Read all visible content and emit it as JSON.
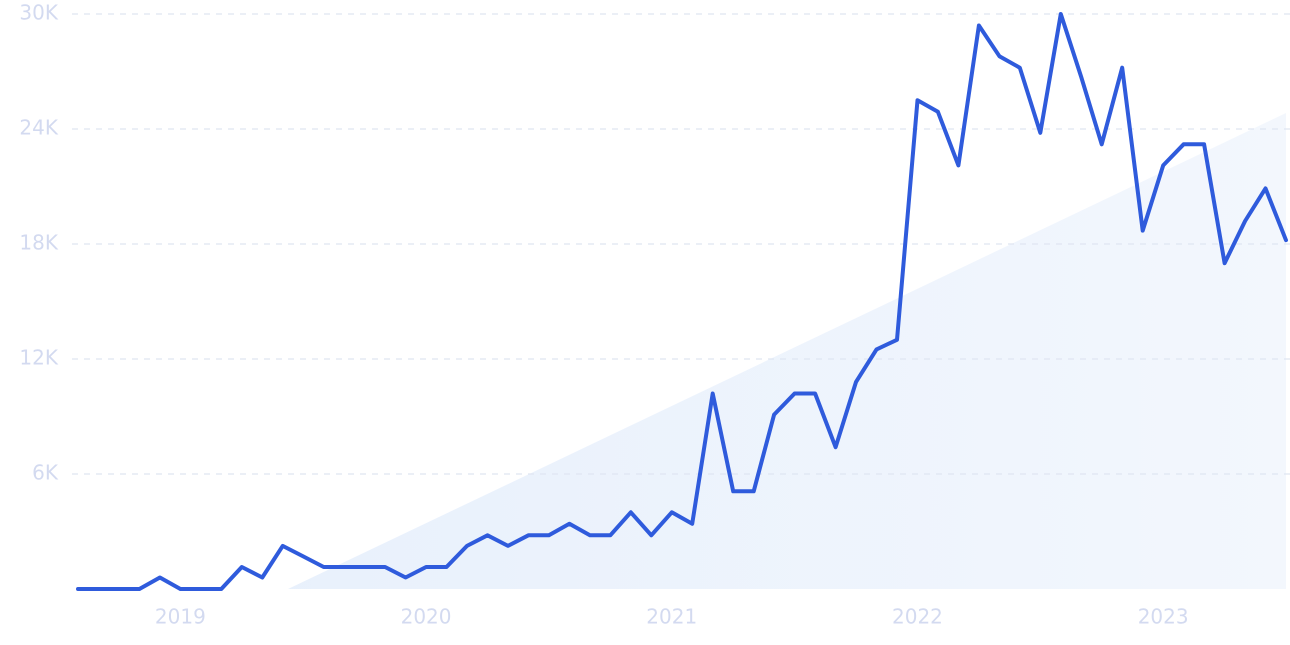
{
  "chart_data": {
    "type": "line",
    "categories": [
      null,
      null,
      null,
      null,
      null,
      "2019",
      null,
      null,
      null,
      null,
      null,
      null,
      null,
      null,
      null,
      null,
      null,
      "2020",
      null,
      null,
      null,
      null,
      null,
      null,
      null,
      null,
      null,
      null,
      null,
      "2021",
      null,
      null,
      null,
      null,
      null,
      null,
      null,
      null,
      null,
      null,
      null,
      "2022",
      null,
      null,
      null,
      null,
      null,
      null,
      null,
      null,
      null,
      null,
      null,
      "2023",
      null,
      null,
      null,
      null,
      null,
      null
    ],
    "series": [
      {
        "color": "#2f5bdc",
        "values": [
          0,
          0,
          0,
          0,
          600,
          0,
          0,
          0,
          1150,
          600,
          2250,
          1700,
          1150,
          1150,
          1150,
          1150,
          600,
          1150,
          1150,
          2250,
          2800,
          2250,
          2800,
          2800,
          3400,
          2800,
          2800,
          4000,
          2800,
          4000,
          3400,
          10200,
          5100,
          5100,
          9100,
          10200,
          10200,
          7400,
          10800,
          12500,
          13000,
          25500,
          24900,
          22100,
          29400,
          27800,
          27200,
          23800,
          30000,
          26700,
          23200,
          27200,
          18700,
          22100,
          23200,
          23200,
          17000,
          19200,
          20900,
          18200
        ]
      }
    ],
    "ylim": [
      0,
      30000
    ],
    "yticks": [
      {
        "value": 6000,
        "label": "6K"
      },
      {
        "value": 12000,
        "label": "12K"
      },
      {
        "value": 18000,
        "label": "18K"
      },
      {
        "value": 24000,
        "label": "24K"
      },
      {
        "value": 30000,
        "label": "30K"
      }
    ],
    "grid": true
  }
}
